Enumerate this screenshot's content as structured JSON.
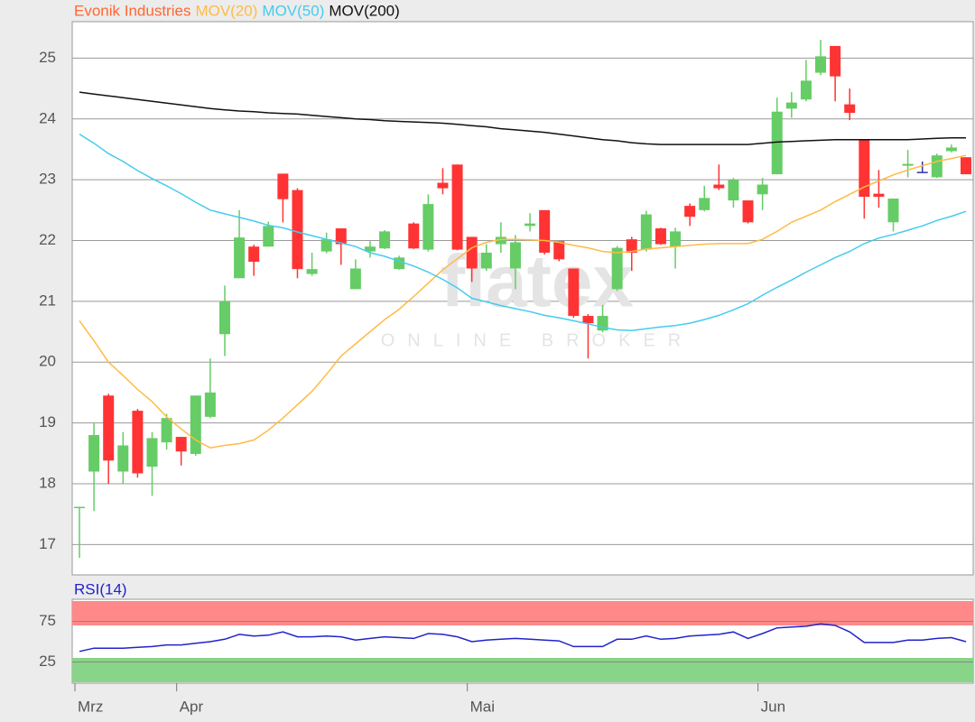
{
  "chart_data": [
    {
      "type": "candlestick",
      "name": "Evonik Industries",
      "name_color": "#ff6633",
      "watermark": {
        "brand": "flatex",
        "tagline": "ONLINE BROKER"
      },
      "categories": [
        "Mrz",
        null,
        null,
        null,
        null,
        null,
        null,
        "Apr",
        null,
        null,
        null,
        null,
        null,
        null,
        null,
        null,
        null,
        null,
        null,
        null,
        null,
        null,
        null,
        null,
        null,
        null,
        null,
        "Mai",
        null,
        null,
        null,
        null,
        null,
        null,
        null,
        null,
        null,
        null,
        null,
        null,
        null,
        null,
        null,
        null,
        null,
        null,
        null,
        "Jun",
        null,
        null,
        null,
        null,
        null,
        null,
        null,
        null,
        null,
        null,
        null,
        null,
        null,
        null
      ],
      "open": [
        17.6,
        18.2,
        19.45,
        18.2,
        19.2,
        18.28,
        18.68,
        18.77,
        18.49,
        19.1,
        20.46,
        21.38,
        21.9,
        21.9,
        23.1,
        22.83,
        21.45,
        21.82,
        22.2,
        21.2,
        21.82,
        21.87,
        21.53,
        22.28,
        21.85,
        22.95,
        23.25,
        22.06,
        21.54,
        21.94,
        21.54,
        22.24,
        22.5,
        21.99,
        21.54,
        20.76,
        20.52,
        21.2,
        22.02,
        21.85,
        22.2,
        21.9,
        22.57,
        22.5,
        22.92,
        22.66,
        22.66,
        22.76,
        23.09,
        24.17,
        24.32,
        24.76,
        25.2,
        24.24,
        23.65,
        22.77,
        22.3,
        23.23,
        23.13,
        23.04,
        23.47,
        23.37
      ],
      "high": [
        17.62,
        19.0,
        19.48,
        18.85,
        19.23,
        18.85,
        19.15,
        18.77,
        19.45,
        20.06,
        21.26,
        22.5,
        21.93,
        22.31,
        23.1,
        22.86,
        21.8,
        22.13,
        22.2,
        21.69,
        21.99,
        22.17,
        21.75,
        22.3,
        22.76,
        23.19,
        23.25,
        22.06,
        21.94,
        22.3,
        22.09,
        22.45,
        22.5,
        21.99,
        21.54,
        20.79,
        20.94,
        21.91,
        22.06,
        22.49,
        22.21,
        22.21,
        22.61,
        22.9,
        23.25,
        23.03,
        22.66,
        23.03,
        24.35,
        24.44,
        24.97,
        25.3,
        25.2,
        24.5,
        23.65,
        23.16,
        22.69,
        23.49,
        23.3,
        23.43,
        23.58,
        23.37
      ],
      "low": [
        16.78,
        17.55,
        18.0,
        18.0,
        18.1,
        17.8,
        18.56,
        18.3,
        18.46,
        19.08,
        20.1,
        21.38,
        21.42,
        21.9,
        22.3,
        21.38,
        21.42,
        21.79,
        21.6,
        21.2,
        21.72,
        21.86,
        21.52,
        21.86,
        21.82,
        22.76,
        21.84,
        21.32,
        21.5,
        21.8,
        21.2,
        22.15,
        21.77,
        21.66,
        20.73,
        20.06,
        20.49,
        21.17,
        21.5,
        21.82,
        21.93,
        21.54,
        22.24,
        22.48,
        22.83,
        22.54,
        22.28,
        22.5,
        23.09,
        24.02,
        24.29,
        24.72,
        24.29,
        23.98,
        22.36,
        22.54,
        22.15,
        23.04,
        23.12,
        23.03,
        23.45,
        23.09
      ],
      "close": [
        17.62,
        18.8,
        18.38,
        18.63,
        18.17,
        18.75,
        19.08,
        18.53,
        19.45,
        19.5,
        21.0,
        22.05,
        21.65,
        22.24,
        22.68,
        21.53,
        21.53,
        22.02,
        21.94,
        21.54,
        21.9,
        22.15,
        21.72,
        21.87,
        22.6,
        22.86,
        21.85,
        21.54,
        21.8,
        22.06,
        21.97,
        22.28,
        21.8,
        21.69,
        20.76,
        20.64,
        20.76,
        21.88,
        21.8,
        22.43,
        21.94,
        22.15,
        22.39,
        22.7,
        22.86,
        23.0,
        22.3,
        22.92,
        24.12,
        24.27,
        24.63,
        25.03,
        24.7,
        24.1,
        22.72,
        22.72,
        22.69,
        23.26,
        23.13,
        23.4,
        23.53,
        23.09
      ],
      "up_color": "#66cc66",
      "down_color": "#ff3333",
      "doji_color": "#3333aa",
      "series": [
        {
          "name": "MOV(20)",
          "color": "#ffbb44",
          "values": [
            20.68,
            20.35,
            20.0,
            19.78,
            19.55,
            19.35,
            19.1,
            18.9,
            18.72,
            18.59,
            18.63,
            18.66,
            18.72,
            18.88,
            19.08,
            19.3,
            19.52,
            19.8,
            20.1,
            20.3,
            20.5,
            20.7,
            20.87,
            21.08,
            21.3,
            21.52,
            21.7,
            21.88,
            21.97,
            22.02,
            22.02,
            22.01,
            22.0,
            21.97,
            21.92,
            21.88,
            21.82,
            21.8,
            21.82,
            21.86,
            21.88,
            21.9,
            21.92,
            21.94,
            21.95,
            21.95,
            21.95,
            22.02,
            22.15,
            22.3,
            22.4,
            22.5,
            22.64,
            22.76,
            22.88,
            22.98,
            23.08,
            23.16,
            23.23,
            23.3,
            23.35,
            23.4
          ]
        },
        {
          "name": "MOV(50)",
          "color": "#44ccee",
          "values": [
            23.75,
            23.6,
            23.43,
            23.3,
            23.15,
            23.02,
            22.9,
            22.77,
            22.63,
            22.5,
            22.44,
            22.38,
            22.32,
            22.25,
            22.21,
            22.14,
            22.08,
            22.02,
            21.96,
            21.9,
            21.8,
            21.74,
            21.66,
            21.58,
            21.48,
            21.36,
            21.22,
            21.05,
            20.99,
            20.93,
            20.88,
            20.83,
            20.77,
            20.73,
            20.68,
            20.63,
            20.57,
            20.53,
            20.52,
            20.55,
            20.58,
            20.6,
            20.64,
            20.7,
            20.77,
            20.86,
            20.96,
            21.1,
            21.23,
            21.35,
            21.48,
            21.6,
            21.72,
            21.82,
            21.95,
            22.04,
            22.1,
            22.17,
            22.24,
            22.33,
            22.4,
            22.48
          ]
        },
        {
          "name": "MOV(200)",
          "color": "#111111",
          "values": [
            24.44,
            24.41,
            24.38,
            24.35,
            24.32,
            24.29,
            24.26,
            24.23,
            24.2,
            24.17,
            24.15,
            24.13,
            24.12,
            24.1,
            24.09,
            24.08,
            24.06,
            24.04,
            24.02,
            24.0,
            23.99,
            23.97,
            23.96,
            23.95,
            23.94,
            23.93,
            23.91,
            23.89,
            23.87,
            23.84,
            23.82,
            23.8,
            23.78,
            23.75,
            23.72,
            23.69,
            23.66,
            23.64,
            23.61,
            23.59,
            23.58,
            23.58,
            23.58,
            23.58,
            23.58,
            23.58,
            23.58,
            23.6,
            23.62,
            23.63,
            23.64,
            23.65,
            23.66,
            23.66,
            23.66,
            23.66,
            23.66,
            23.66,
            23.67,
            23.68,
            23.69,
            23.69
          ]
        }
      ],
      "ylim": [
        16.5,
        25.6
      ],
      "yticks": [
        17,
        18,
        19,
        20,
        21,
        22,
        23,
        24,
        25
      ],
      "grid": true
    },
    {
      "type": "line",
      "title": "RSI(14)",
      "color": "#2222cc",
      "values": [
        38,
        42,
        42,
        42,
        43,
        44,
        46,
        46,
        48,
        50,
        53,
        59,
        57,
        58,
        62,
        56,
        56,
        57,
        56,
        52,
        54,
        56,
        55,
        54,
        60,
        59,
        56,
        50,
        52,
        53,
        54,
        53,
        52,
        51,
        44,
        44,
        44,
        53,
        53,
        57,
        53,
        54,
        57,
        58,
        59,
        62,
        54,
        60,
        67,
        68,
        69,
        72,
        70,
        62,
        49,
        49,
        49,
        52,
        52,
        54,
        55,
        50
      ],
      "bands": [
        {
          "range": [
            70,
            100
          ],
          "color": "#ff8888"
        },
        {
          "range": [
            0,
            30
          ],
          "color": "#88d488"
        }
      ],
      "ylim": [
        0,
        100
      ],
      "yticks": [
        25,
        75
      ],
      "grid": true
    }
  ]
}
